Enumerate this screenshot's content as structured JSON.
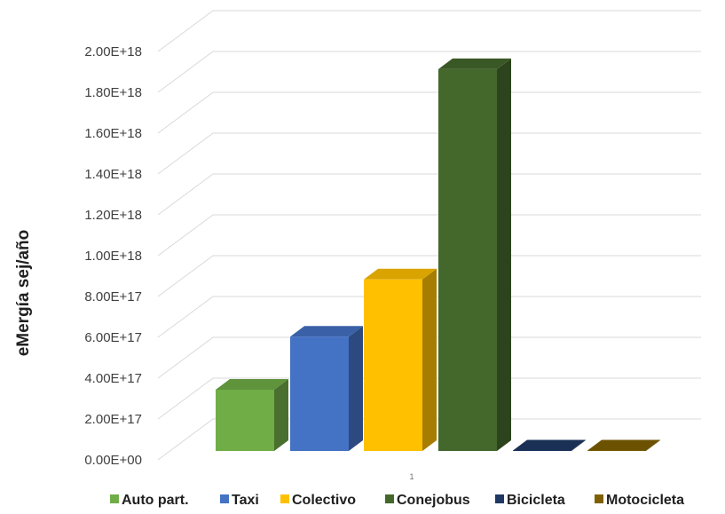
{
  "chart_data": {
    "type": "bar",
    "categories": [
      "1"
    ],
    "series": [
      {
        "name": "Auto part.",
        "values": [
          3e+17
        ],
        "color": "#70ad47"
      },
      {
        "name": "Taxi",
        "values": [
          5.6e+17
        ],
        "color": "#4472c4"
      },
      {
        "name": "Colectivo",
        "values": [
          8.4e+17
        ],
        "color": "#ffc000"
      },
      {
        "name": "Conejobus",
        "values": [
          1.87e+18
        ],
        "color": "#44682c"
      },
      {
        "name": "Bicicleta",
        "values": [
          1000000000000000.0
        ],
        "color": "#1f3864"
      },
      {
        "name": "Motocicleta",
        "values": [
          1000000000000000.0
        ],
        "color": "#7f6000"
      }
    ],
    "ylabel": "eMergía sej/año",
    "ylim": [
      0,
      2e+18
    ],
    "yticks": [
      "0.00E+00",
      "2.00E+17",
      "4.00E+17",
      "6.00E+17",
      "8.00E+17",
      "1.00E+18",
      "1.20E+18",
      "1.40E+18",
      "1.60E+18",
      "1.80E+18",
      "2.00E+18"
    ],
    "grid": true,
    "legend_position": "bottom",
    "style": "3d-clustered-column"
  }
}
